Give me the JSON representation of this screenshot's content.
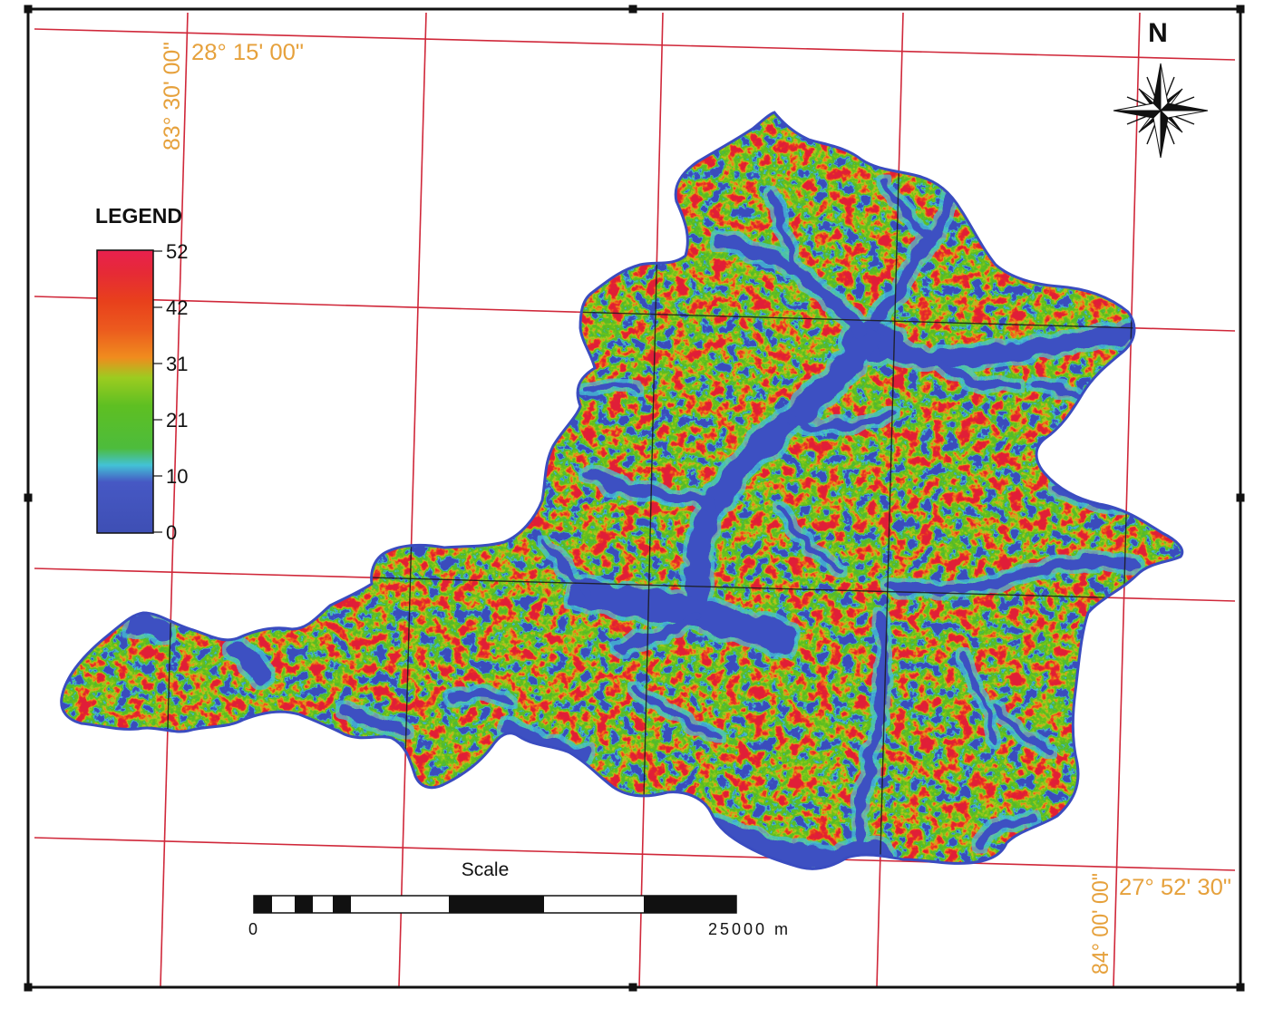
{
  "map": {
    "north_label": "N",
    "legend": {
      "title": "LEGEND",
      "ticks": [
        "52",
        "42",
        "31",
        "21",
        "10",
        "0"
      ],
      "colors": [
        "#3e4fb4",
        "#4658c4",
        "#43c2d6",
        "#4dbc3c",
        "#5ebf22",
        "#9ccc20",
        "#f08c1e",
        "#ec5a1e",
        "#e8401c",
        "#e62a36",
        "#e8204e"
      ]
    },
    "coordinates": {
      "top_left_lat": "28° 15' 00\"",
      "top_left_lon": "83° 30' 00\"",
      "bottom_right_lat": "27° 52' 30\"",
      "bottom_right_lon": "84° 00' 00\""
    },
    "scale": {
      "title": "Scale",
      "start_label": "0",
      "end_label": "25000 m"
    },
    "colors": {
      "graticule": "#d0283a",
      "coordinate_text": "#e6a13c",
      "frame": "#111111",
      "valley": "#3d50c2"
    }
  }
}
